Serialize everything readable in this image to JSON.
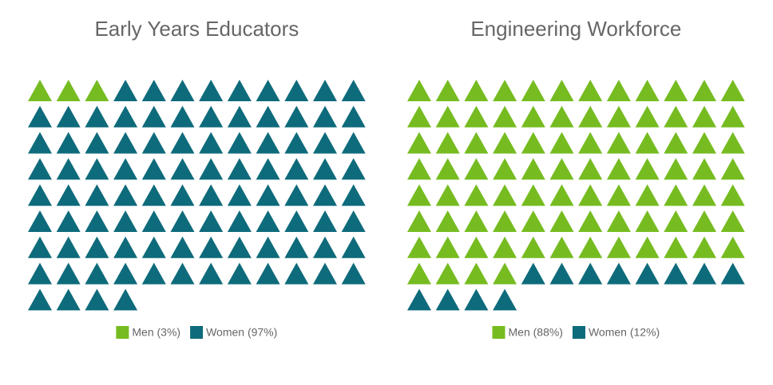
{
  "chart_data": [
    {
      "type": "waffle",
      "title": "Early Years Educators",
      "series": [
        {
          "name": "Men (3%)",
          "color": "#76bc21",
          "values": [
            3
          ]
        },
        {
          "name": "Women (97%)",
          "color": "#0e6b7b",
          "values": [
            97
          ]
        }
      ]
    },
    {
      "type": "waffle",
      "title": "Engineering Workforce",
      "series": [
        {
          "name": "Men (88%)",
          "color": "#76bc21",
          "values": [
            88
          ]
        },
        {
          "name": "Women (12%)",
          "color": "#0e6b7b",
          "values": [
            12
          ]
        }
      ]
    }
  ]
}
